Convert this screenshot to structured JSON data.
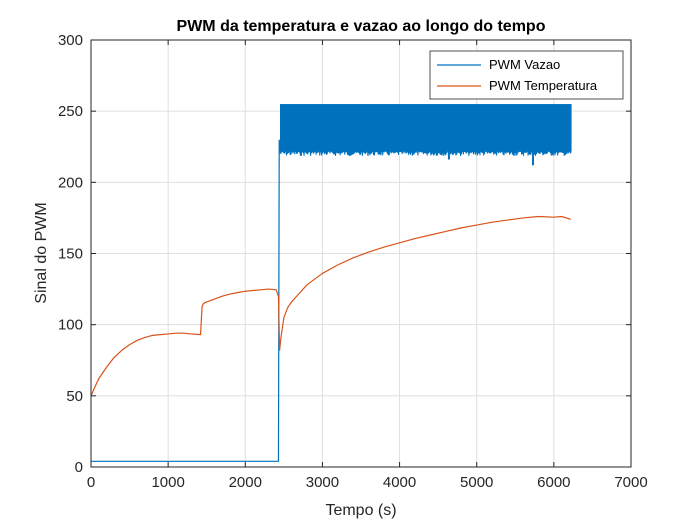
{
  "chart_data": {
    "type": "line",
    "title": "PWM da temperatura e vazao ao longo do tempo",
    "xlabel": "Tempo (s)",
    "ylabel": "Sinal do PWM",
    "xlim": [
      0,
      7000
    ],
    "ylim": [
      0,
      300
    ],
    "xticks": [
      0,
      1000,
      2000,
      3000,
      4000,
      5000,
      6000,
      7000
    ],
    "yticks": [
      0,
      50,
      100,
      150,
      200,
      250,
      300
    ],
    "xtick_labels": [
      "0",
      "1000",
      "2000",
      "3000",
      "4000",
      "5000",
      "6000",
      "7000"
    ],
    "ytick_labels": [
      "0",
      "50",
      "100",
      "150",
      "200",
      "250",
      "300"
    ],
    "grid": true,
    "legend_position": "top-right",
    "series": [
      {
        "name": "PWM Vazao",
        "color": "#0072BD",
        "x": [
          0,
          2420,
          2430,
          2440,
          2450,
          6220
        ],
        "y": [
          4,
          4,
          4,
          230,
          222,
          222
        ],
        "band": {
          "x_start": 2450,
          "x_end": 6220,
          "lower": 222,
          "upper": 255
        },
        "dips": [
          {
            "x": 4640,
            "y": 216
          },
          {
            "x": 5730,
            "y": 212
          }
        ]
      },
      {
        "name": "PWM Temperatura",
        "color": "#D95319",
        "x": [
          0,
          40,
          100,
          200,
          300,
          400,
          500,
          600,
          700,
          800,
          900,
          1000,
          1100,
          1200,
          1300,
          1420,
          1440,
          1460,
          1500,
          1600,
          1700,
          1800,
          1900,
          2000,
          2100,
          2200,
          2300,
          2400,
          2430,
          2445,
          2460,
          2500,
          2550,
          2600,
          2700,
          2800,
          3000,
          3200,
          3400,
          3600,
          3800,
          4000,
          4200,
          4400,
          4600,
          4800,
          5000,
          5200,
          5400,
          5600,
          5800,
          6000,
          6100,
          6220
        ],
        "y": [
          50,
          55,
          62,
          70,
          77,
          82,
          86,
          89,
          91,
          92.5,
          93,
          93.5,
          94,
          94,
          93.5,
          93,
          113,
          115,
          116,
          118,
          120,
          121.5,
          122.5,
          123.5,
          124,
          124.5,
          125,
          124.5,
          120,
          82,
          90,
          105,
          112,
          116,
          122,
          128,
          136,
          142,
          147,
          151,
          154.5,
          157.5,
          160.5,
          163,
          165.5,
          168,
          170,
          172,
          173.5,
          175,
          176,
          175.5,
          176,
          174
        ]
      }
    ]
  }
}
